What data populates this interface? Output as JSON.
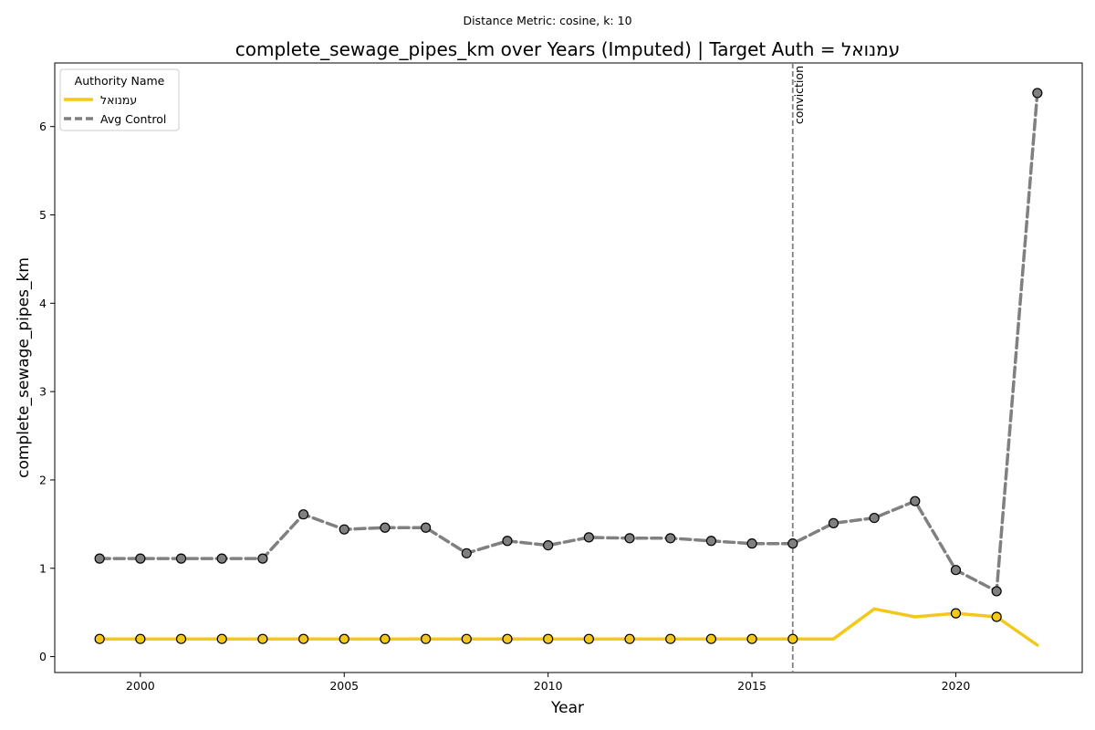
{
  "chart_data": {
    "type": "line",
    "suptitle": "Distance Metric: cosine, k: 10",
    "title": "complete_sewage_pipes_km over Years (Imputed) | Target Auth = עמנואל",
    "xlabel": "Year",
    "ylabel": "complete_sewage_pipes_km",
    "xlim": [
      1997.9,
      2023.1
    ],
    "ylim": [
      -0.18,
      6.72
    ],
    "x_ticks": [
      2000,
      2005,
      2010,
      2015,
      2020
    ],
    "y_ticks": [
      0,
      1,
      2,
      3,
      4,
      5,
      6
    ],
    "grid": false,
    "legend": {
      "title": "Authority Name",
      "placement": "top-left"
    },
    "vline": {
      "x": 2016,
      "label": "conviction",
      "color": "#808080"
    },
    "series": [
      {
        "name": "עמנואל",
        "color": "#f2c919",
        "style": "solid",
        "x": [
          1999,
          2000,
          2001,
          2002,
          2003,
          2004,
          2005,
          2006,
          2007,
          2008,
          2009,
          2010,
          2011,
          2012,
          2013,
          2014,
          2015,
          2016,
          2017,
          2018,
          2019,
          2020,
          2021,
          2022
        ],
        "values": [
          0.2,
          0.2,
          0.2,
          0.2,
          0.2,
          0.2,
          0.2,
          0.2,
          0.2,
          0.2,
          0.2,
          0.2,
          0.2,
          0.2,
          0.2,
          0.2,
          0.2,
          0.2,
          0.2,
          0.54,
          0.45,
          0.49,
          0.45,
          0.13
        ],
        "marker_x": [
          1999,
          2000,
          2001,
          2002,
          2003,
          2004,
          2005,
          2006,
          2007,
          2008,
          2009,
          2010,
          2011,
          2012,
          2013,
          2014,
          2015,
          2016,
          2020,
          2021
        ]
      },
      {
        "name": "Avg Control",
        "color": "#808080",
        "style": "dashed",
        "x": [
          1999,
          2000,
          2001,
          2002,
          2003,
          2004,
          2005,
          2006,
          2007,
          2008,
          2009,
          2010,
          2011,
          2012,
          2013,
          2014,
          2015,
          2016,
          2017,
          2018,
          2019,
          2020,
          2021,
          2022
        ],
        "values": [
          1.11,
          1.11,
          1.11,
          1.11,
          1.11,
          1.61,
          1.44,
          1.46,
          1.46,
          1.17,
          1.31,
          1.26,
          1.35,
          1.34,
          1.34,
          1.31,
          1.28,
          1.28,
          1.51,
          1.57,
          1.76,
          0.98,
          0.74,
          6.38
        ],
        "marker_x": [
          1999,
          2000,
          2001,
          2002,
          2003,
          2004,
          2005,
          2006,
          2007,
          2008,
          2009,
          2010,
          2011,
          2012,
          2013,
          2014,
          2015,
          2016,
          2017,
          2018,
          2019,
          2020,
          2021,
          2022
        ]
      }
    ]
  }
}
